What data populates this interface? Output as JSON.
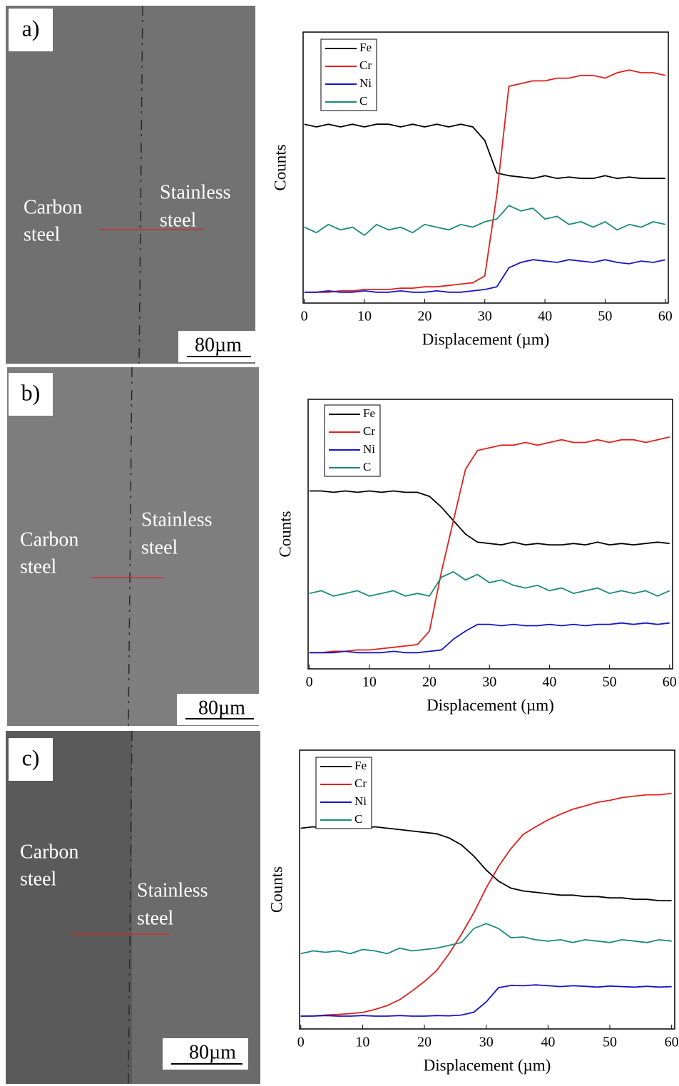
{
  "images": [
    {
      "label": "a)",
      "carbon": [
        "Carbon",
        "steel"
      ],
      "stainless": [
        "Stainless",
        "steel"
      ],
      "scale_bar": "80µm"
    },
    {
      "label": "b)",
      "carbon": [
        "Carbon",
        "steel"
      ],
      "stainless": [
        "Stainless",
        "steel"
      ],
      "scale_bar": "80µm"
    },
    {
      "label": "c)",
      "carbon": [
        "Carbon",
        "steel"
      ],
      "stainless": [
        "Stainless",
        "steel"
      ],
      "scale_bar": "80µm"
    }
  ],
  "chart_data": [
    {
      "type": "line",
      "x_label": "Displacement (µm)",
      "y_label": "Counts",
      "legend": "top-left",
      "xlim": [
        -0.2,
        60.5
      ],
      "xticks": [
        0,
        10,
        20,
        30,
        40,
        50,
        60
      ],
      "ylim": [
        0,
        100
      ],
      "x": [
        0,
        2,
        4,
        6,
        8,
        10,
        12,
        14,
        16,
        18,
        20,
        22,
        24,
        26,
        28,
        30,
        32,
        34,
        36,
        38,
        40,
        42,
        44,
        46,
        48,
        50,
        52,
        54,
        56,
        58,
        60
      ],
      "series": [
        {
          "name": "Fe",
          "color": "#000000",
          "values": [
            66,
            65,
            66,
            65,
            66,
            65,
            66,
            66,
            65,
            66,
            65,
            66,
            65,
            66,
            65,
            60,
            48,
            47,
            46.5,
            46,
            47,
            46,
            46.5,
            46,
            46,
            47,
            46,
            46.5,
            46,
            46,
            46
          ]
        },
        {
          "name": "Cr",
          "color": "#e0201b",
          "values": [
            4,
            4,
            4,
            4.5,
            4.5,
            5,
            5,
            5,
            5.5,
            5.5,
            6,
            6,
            6.5,
            7,
            7.5,
            10,
            40,
            80,
            81,
            82,
            82,
            83,
            83,
            84,
            84,
            83,
            85,
            86,
            85,
            85,
            84
          ]
        },
        {
          "name": "Ni",
          "color": "#1515c8",
          "values": [
            4,
            4,
            4.5,
            4,
            4,
            4.5,
            4,
            4,
            4.5,
            4,
            4,
            4.5,
            4,
            4,
            4.5,
            5,
            6,
            13,
            15,
            16,
            15.5,
            15,
            16,
            15.5,
            15,
            16,
            15,
            14.5,
            15.5,
            15,
            16
          ]
        },
        {
          "name": "C",
          "color": "#1a8a7a",
          "values": [
            28,
            26,
            29,
            27,
            28,
            25,
            29,
            27,
            28,
            26,
            29,
            28,
            27,
            29,
            28,
            30,
            31,
            36,
            34,
            35,
            31,
            32,
            29,
            30,
            28,
            30,
            27,
            29,
            28,
            30,
            29
          ]
        }
      ]
    },
    {
      "type": "line",
      "x_label": "Displacement (µm)",
      "y_label": "Counts",
      "legend": "top-left",
      "xlim": [
        -0.2,
        60.5
      ],
      "xticks": [
        0,
        10,
        20,
        30,
        40,
        50,
        60
      ],
      "ylim": [
        0,
        100
      ],
      "x": [
        0,
        2,
        4,
        6,
        8,
        10,
        12,
        14,
        16,
        18,
        20,
        22,
        24,
        26,
        28,
        30,
        32,
        34,
        36,
        38,
        40,
        42,
        44,
        46,
        48,
        50,
        52,
        54,
        56,
        58,
        60
      ],
      "series": [
        {
          "name": "Fe",
          "color": "#000000",
          "values": [
            66,
            66,
            65.5,
            66,
            65.5,
            66,
            65.5,
            66,
            65.5,
            65.5,
            64,
            60,
            55,
            50,
            47,
            46.5,
            46,
            47,
            46,
            46.5,
            46,
            46,
            46.5,
            46,
            47,
            46,
            46.5,
            46,
            46.5,
            47,
            46.5
          ]
        },
        {
          "name": "Cr",
          "color": "#e0201b",
          "values": [
            6,
            6,
            6.5,
            6.5,
            7,
            7,
            7.5,
            8,
            8.5,
            9,
            14,
            36,
            55,
            74,
            81,
            82,
            83,
            83,
            84,
            83,
            84,
            85,
            84,
            84,
            85,
            84,
            85,
            85,
            84,
            85,
            86
          ]
        },
        {
          "name": "Ni",
          "color": "#1515c8",
          "values": [
            6,
            6,
            6,
            6.5,
            6,
            6,
            6,
            6.5,
            6,
            6,
            6.5,
            7,
            11,
            14,
            16.5,
            16.5,
            16,
            16.5,
            16,
            16,
            16.5,
            16,
            16.5,
            16,
            16.5,
            16.5,
            17,
            16.5,
            17,
            16.5,
            17
          ]
        },
        {
          "name": "C",
          "color": "#1a8a7a",
          "values": [
            28,
            29,
            27,
            28,
            29,
            27,
            28,
            29,
            27,
            28,
            27,
            34,
            36,
            33,
            35,
            32,
            33,
            31,
            30,
            31,
            29,
            30,
            28,
            29,
            30,
            28,
            29,
            28,
            29,
            27,
            29
          ]
        }
      ]
    },
    {
      "type": "line",
      "x_label": "Displacement (µm)",
      "y_label": "Counts",
      "legend": "top-left",
      "xlim": [
        -0.2,
        60.5
      ],
      "xticks": [
        0,
        10,
        20,
        30,
        40,
        50,
        60
      ],
      "ylim": [
        0,
        100
      ],
      "x": [
        0,
        2,
        4,
        6,
        8,
        10,
        12,
        14,
        16,
        18,
        20,
        22,
        24,
        26,
        28,
        30,
        32,
        34,
        36,
        38,
        40,
        42,
        44,
        46,
        48,
        50,
        52,
        54,
        56,
        58,
        60
      ],
      "series": [
        {
          "name": "Fe",
          "color": "#000000",
          "values": [
            72,
            72.5,
            72,
            72.5,
            72,
            72,
            72.5,
            72,
            71.5,
            71,
            70.5,
            70,
            68.5,
            66,
            62,
            57,
            53,
            50.5,
            49.5,
            49,
            48.5,
            48,
            48,
            47.5,
            47.5,
            47,
            47,
            46.5,
            46.5,
            46,
            46
          ]
        },
        {
          "name": "Cr",
          "color": "#e0201b",
          "values": [
            4.6,
            4.7,
            5,
            5.2,
            5.5,
            5.9,
            7,
            8.4,
            10.5,
            13.6,
            17,
            21,
            27,
            34,
            41.7,
            50.6,
            58.3,
            64.7,
            69.8,
            72.5,
            75,
            77,
            78.8,
            80,
            81.3,
            82,
            83,
            83.5,
            84,
            84,
            84.5
          ]
        },
        {
          "name": "Ni",
          "color": "#1515c8",
          "values": [
            4.6,
            4.6,
            4.8,
            4.6,
            4.6,
            4.8,
            4.6,
            4.6,
            4.8,
            4.6,
            4.6,
            4.8,
            4.7,
            5,
            6,
            9.7,
            14.8,
            15.6,
            15.5,
            15.8,
            15.5,
            15.2,
            15.5,
            15.3,
            15,
            15.4,
            15.2,
            15,
            15.3,
            15,
            15.2
          ]
        },
        {
          "name": "C",
          "color": "#1a8a7a",
          "values": [
            27,
            28,
            27.5,
            28,
            27,
            28.5,
            28,
            27,
            29,
            28,
            28.5,
            29,
            30,
            31,
            36,
            37.8,
            36,
            32.7,
            33,
            32,
            31.5,
            32,
            31,
            32,
            31.5,
            31,
            32,
            31.5,
            31,
            32,
            31.5
          ]
        }
      ]
    }
  ]
}
